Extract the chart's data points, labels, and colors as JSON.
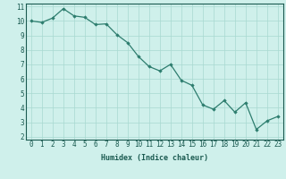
{
  "x": [
    0,
    1,
    2,
    3,
    4,
    5,
    6,
    7,
    8,
    9,
    10,
    11,
    12,
    13,
    14,
    15,
    16,
    17,
    18,
    19,
    20,
    21,
    22,
    23
  ],
  "y": [
    10.0,
    9.9,
    10.2,
    10.85,
    10.35,
    10.25,
    9.75,
    9.8,
    9.05,
    8.5,
    7.55,
    6.85,
    6.55,
    7.0,
    5.9,
    5.55,
    4.2,
    3.9,
    4.5,
    3.7,
    4.35,
    2.5,
    3.1,
    3.4
  ],
  "line_color": "#2d7d6e",
  "marker": "D",
  "marker_size": 1.8,
  "bg_color": "#cff0eb",
  "grid_color": "#a8d8d0",
  "xlabel": "Humidex (Indice chaleur)",
  "xlim": [
    -0.5,
    23.5
  ],
  "ylim": [
    1.8,
    11.2
  ],
  "yticks": [
    2,
    3,
    4,
    5,
    6,
    7,
    8,
    9,
    10,
    11
  ],
  "xticks": [
    0,
    1,
    2,
    3,
    4,
    5,
    6,
    7,
    8,
    9,
    10,
    11,
    12,
    13,
    14,
    15,
    16,
    17,
    18,
    19,
    20,
    21,
    22,
    23
  ],
  "xlabel_fontsize": 6.0,
  "tick_fontsize": 5.5,
  "line_width": 0.9,
  "title_color": "#1a5a50"
}
